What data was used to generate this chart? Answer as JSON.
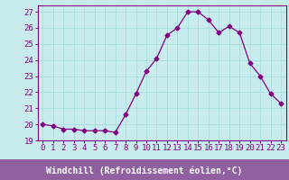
{
  "x": [
    0,
    1,
    2,
    3,
    4,
    5,
    6,
    7,
    8,
    9,
    10,
    11,
    12,
    13,
    14,
    15,
    16,
    17,
    18,
    19,
    20,
    21,
    22,
    23
  ],
  "y": [
    20.0,
    19.9,
    19.7,
    19.7,
    19.6,
    19.6,
    19.6,
    19.5,
    20.6,
    21.9,
    23.3,
    24.1,
    25.55,
    26.0,
    27.0,
    27.0,
    26.5,
    25.7,
    26.1,
    25.7,
    23.8,
    23.0,
    21.9,
    21.3
  ],
  "line_color": "#800080",
  "marker": "D",
  "marker_size": 2.5,
  "bg_color": "#c8eced",
  "grid_color": "#aadddd",
  "xlabel": "Windchill (Refroidissement éolien,°C)",
  "xlim": [
    -0.5,
    23.5
  ],
  "ylim": [
    19.0,
    27.4
  ],
  "yticks": [
    19,
    20,
    21,
    22,
    23,
    24,
    25,
    26,
    27
  ],
  "xticks": [
    0,
    1,
    2,
    3,
    4,
    5,
    6,
    7,
    8,
    9,
    10,
    11,
    12,
    13,
    14,
    15,
    16,
    17,
    18,
    19,
    20,
    21,
    22,
    23
  ],
  "tick_color": "#800080",
  "label_color": "#800080",
  "spine_color": "#800080",
  "font_size": 6.5,
  "xlabel_fontsize": 7.0,
  "xlabel_bg": "#9060a0",
  "xlabel_text_color": "#ffffff"
}
